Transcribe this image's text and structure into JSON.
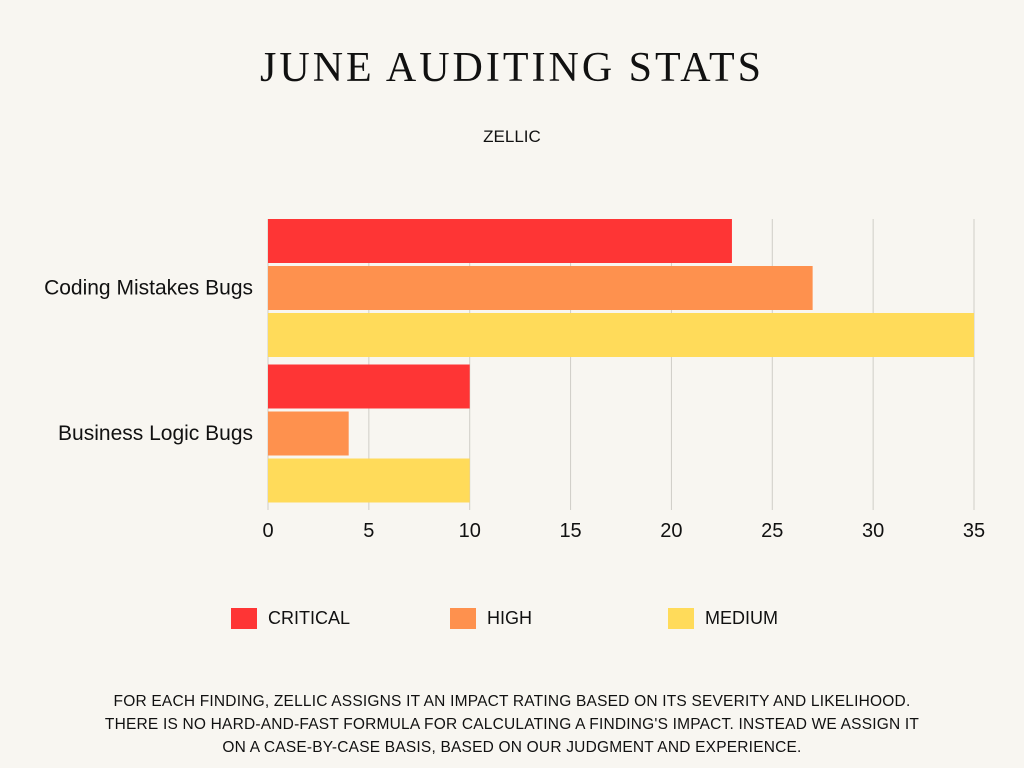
{
  "header": {
    "title": "JUNE AUDITING STATS",
    "subtitle": "ZELLIC"
  },
  "chart_data": {
    "type": "bar",
    "orientation": "horizontal",
    "categories": [
      "Coding Mistakes Bugs",
      "Business Logic Bugs"
    ],
    "series": [
      {
        "name": "CRITICAL",
        "color": "#fe3535",
        "values": [
          23,
          10
        ]
      },
      {
        "name": "HIGH",
        "color": "#fe914e",
        "values": [
          27,
          4
        ]
      },
      {
        "name": "MEDIUM",
        "color": "#ffdb5a",
        "values": [
          35,
          10
        ]
      }
    ],
    "xlim": [
      0,
      35
    ],
    "xticks": [
      0,
      5,
      10,
      15,
      20,
      25,
      30,
      35
    ],
    "grid": true,
    "legend_position": "bottom"
  },
  "footnote": "FOR EACH FINDING, ZELLIC ASSIGNS IT AN IMPACT RATING BASED ON ITS SEVERITY AND LIKELIHOOD. THERE IS NO HARD-AND-FAST FORMULA FOR CALCULATING A FINDING'S IMPACT. INSTEAD WE ASSIGN IT ON A CASE-BY-CASE BASIS, BASED ON OUR JUDGMENT AND EXPERIENCE."
}
